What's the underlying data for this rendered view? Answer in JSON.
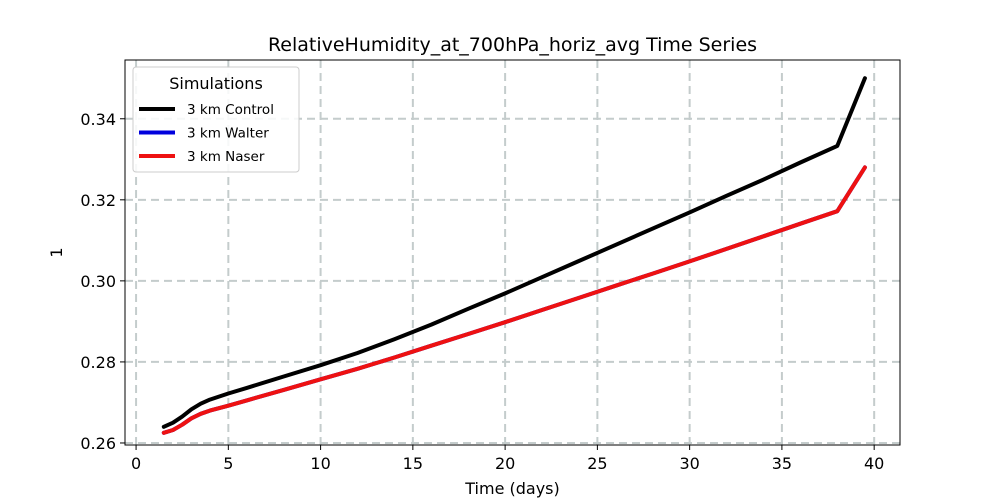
{
  "chart_data": {
    "type": "line",
    "title": "RelativeHumidity_at_700hPa_horiz_avg Time Series",
    "xlabel": "Time (days)",
    "ylabel": "1",
    "xlim": [
      -0.6,
      41.4
    ],
    "ylim": [
      0.2595,
      0.3545
    ],
    "xticks": [
      0,
      5,
      10,
      15,
      20,
      25,
      30,
      35,
      40
    ],
    "xtick_labels": [
      "0",
      "5",
      "10",
      "15",
      "20",
      "25",
      "30",
      "35",
      "40"
    ],
    "yticks": [
      0.26,
      0.28,
      0.3,
      0.32,
      0.34
    ],
    "ytick_labels": [
      "0.26",
      "0.28",
      "0.30",
      "0.32",
      "0.34"
    ],
    "grid": true,
    "legend": {
      "title": "Simulations",
      "placement": "upper-left"
    },
    "series": [
      {
        "name": "3 km Control",
        "color": "#000000",
        "x": [
          1.5,
          2,
          2.5,
          3,
          3.5,
          4,
          5,
          6,
          8,
          10,
          12,
          14,
          16,
          18,
          20,
          22,
          24,
          26,
          28,
          30,
          32,
          34,
          36,
          38,
          39.5
        ],
        "y": [
          0.264,
          0.265,
          0.2665,
          0.2683,
          0.2697,
          0.2707,
          0.2722,
          0.2736,
          0.2764,
          0.2792,
          0.2822,
          0.2856,
          0.2892,
          0.2931,
          0.2969,
          0.3009,
          0.3049,
          0.3089,
          0.3129,
          0.3169,
          0.321,
          0.325,
          0.3292,
          0.3333,
          0.35
        ]
      },
      {
        "name": "3 km Walter",
        "color": "#0000dd",
        "x": [
          1.5,
          2,
          2.5,
          3,
          3.5,
          4,
          5,
          6,
          8,
          10,
          12,
          14,
          16,
          18,
          20,
          22,
          24,
          26,
          28,
          30,
          32,
          34,
          36,
          38,
          39.5
        ],
        "y": [
          0.2625,
          0.2632,
          0.2645,
          0.2661,
          0.2672,
          0.268,
          0.2692,
          0.2705,
          0.2731,
          0.2757,
          0.2783,
          0.2811,
          0.284,
          0.2869,
          0.2898,
          0.2928,
          0.2958,
          0.2988,
          0.3018,
          0.3048,
          0.3079,
          0.311,
          0.3141,
          0.3172,
          0.328
        ]
      },
      {
        "name": "3 km Naser",
        "color": "#ee1111",
        "x": [
          1.5,
          2,
          2.5,
          3,
          3.5,
          4,
          5,
          6,
          8,
          10,
          12,
          14,
          16,
          18,
          20,
          22,
          24,
          26,
          28,
          30,
          32,
          34,
          36,
          38,
          39.5
        ],
        "y": [
          0.2625,
          0.2632,
          0.2645,
          0.2661,
          0.2672,
          0.268,
          0.2692,
          0.2705,
          0.2731,
          0.2757,
          0.2783,
          0.2811,
          0.284,
          0.2869,
          0.2898,
          0.2928,
          0.2958,
          0.2988,
          0.3018,
          0.3048,
          0.3079,
          0.311,
          0.3141,
          0.3172,
          0.328
        ]
      }
    ]
  }
}
